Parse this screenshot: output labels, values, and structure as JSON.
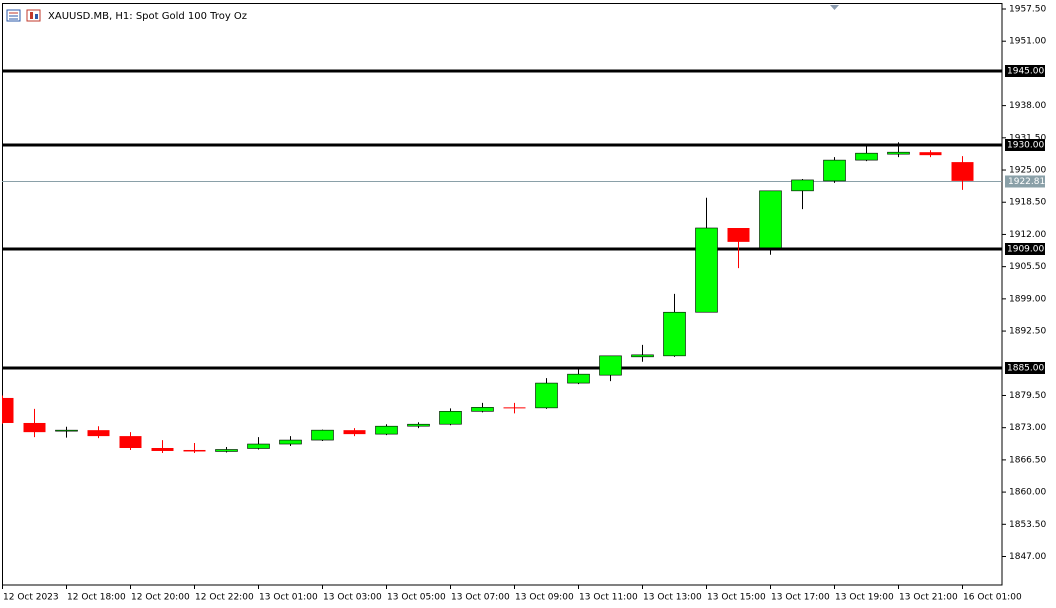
{
  "chart_data": {
    "type": "candlestick",
    "title": "XAUUSD.MB, H1:  Spot Gold 100 Troy Oz",
    "categories": [
      "12 Oct 2023",
      null,
      "12 Oct 18:00",
      null,
      "12 Oct 20:00",
      null,
      "12 Oct 22:00",
      null,
      "13 Oct 01:00",
      null,
      "13 Oct 03:00",
      null,
      "13 Oct 05:00",
      null,
      "13 Oct 07:00",
      null,
      "13 Oct 09:00",
      null,
      "13 Oct 11:00",
      null,
      "13 Oct 13:00",
      null,
      "13 Oct 15:00",
      null,
      "13 Oct 17:00",
      null,
      "13 Oct 19:00",
      null,
      "13 Oct 21:00",
      null,
      "16 Oct 01:00"
    ],
    "open": [
      1879.0,
      1873.95,
      1872.3,
      1872.5,
      1871.3,
      1868.9,
      1868.5,
      1868.2,
      1868.8,
      1869.7,
      1870.5,
      1872.5,
      1871.7,
      1873.3,
      1873.7,
      1876.3,
      1877.1,
      1877.0,
      1882.0,
      1883.6,
      1887.3,
      1887.5,
      1896.3,
      1913.3,
      1909.3,
      1920.8,
      1922.8,
      1927.0,
      1928.2,
      1928.6,
      1926.6
    ],
    "high": [
      1879.5,
      1876.8,
      1873.2,
      1873.3,
      1872.1,
      1870.5,
      1869.9,
      1869.1,
      1871.1,
      1871.3,
      1872.6,
      1872.9,
      1873.7,
      1874.1,
      1876.9,
      1878.0,
      1878.0,
      1883.0,
      1884.8,
      1887.5,
      1889.7,
      1900.0,
      1919.4,
      1913.3,
      1920.8,
      1923.2,
      1927.6,
      1930.0,
      1930.6,
      1929.0,
      1927.8
    ],
    "low": [
      1873.8,
      1871.1,
      1871.0,
      1870.9,
      1868.5,
      1867.9,
      1867.9,
      1868.0,
      1868.6,
      1869.3,
      1870.3,
      1871.3,
      1871.5,
      1872.9,
      1873.5,
      1876.1,
      1875.9,
      1876.8,
      1881.8,
      1882.4,
      1886.3,
      1887.3,
      1896.3,
      1905.2,
      1907.9,
      1917.1,
      1922.4,
      1926.8,
      1927.6,
      1927.6,
      1921.0
    ],
    "close": [
      1873.95,
      1872.1,
      1872.5,
      1871.3,
      1868.9,
      1868.3,
      1868.2,
      1868.6,
      1869.7,
      1870.5,
      1872.5,
      1871.7,
      1873.3,
      1873.7,
      1876.3,
      1877.1,
      1877.0,
      1882.0,
      1883.8,
      1887.5,
      1887.7,
      1896.3,
      1913.3,
      1910.5,
      1920.8,
      1923.0,
      1927.0,
      1928.4,
      1928.6,
      1928.0,
      1922.81
    ],
    "up_color": "#00ff00",
    "down_color": "#ff0000",
    "ylim": [
      1841.25,
      1958.71
    ],
    "yticks": [
      {
        "value": 1957.5,
        "label": "1957.50"
      },
      {
        "value": 1951,
        "label": "1951.00"
      },
      {
        "value": 1938,
        "label": "1938.00"
      },
      {
        "value": 1931.5,
        "label": "1931.50"
      },
      {
        "value": 1925,
        "label": "1925.00"
      },
      {
        "value": 1918.5,
        "label": "1918.50"
      },
      {
        "value": 1912,
        "label": "1912.00"
      },
      {
        "value": 1905.5,
        "label": "1905.50"
      },
      {
        "value": 1899,
        "label": "1899.00"
      },
      {
        "value": 1892.5,
        "label": "1892.50"
      },
      {
        "value": 1879.5,
        "label": "1879.50"
      },
      {
        "value": 1873,
        "label": "1873.00"
      },
      {
        "value": 1866.5,
        "label": "1866.50"
      },
      {
        "value": 1860,
        "label": "1860.00"
      },
      {
        "value": 1853.5,
        "label": "1853.50"
      },
      {
        "value": 1847,
        "label": "1847.00"
      }
    ],
    "hlines": [
      {
        "value": 1945,
        "label": "1945.00"
      },
      {
        "value": 1930,
        "label": "1930.00"
      },
      {
        "value": 1909,
        "label": "1909.00"
      },
      {
        "value": 1885,
        "label": "1885.00"
      }
    ],
    "current_price": 1922.81,
    "grid": false
  }
}
